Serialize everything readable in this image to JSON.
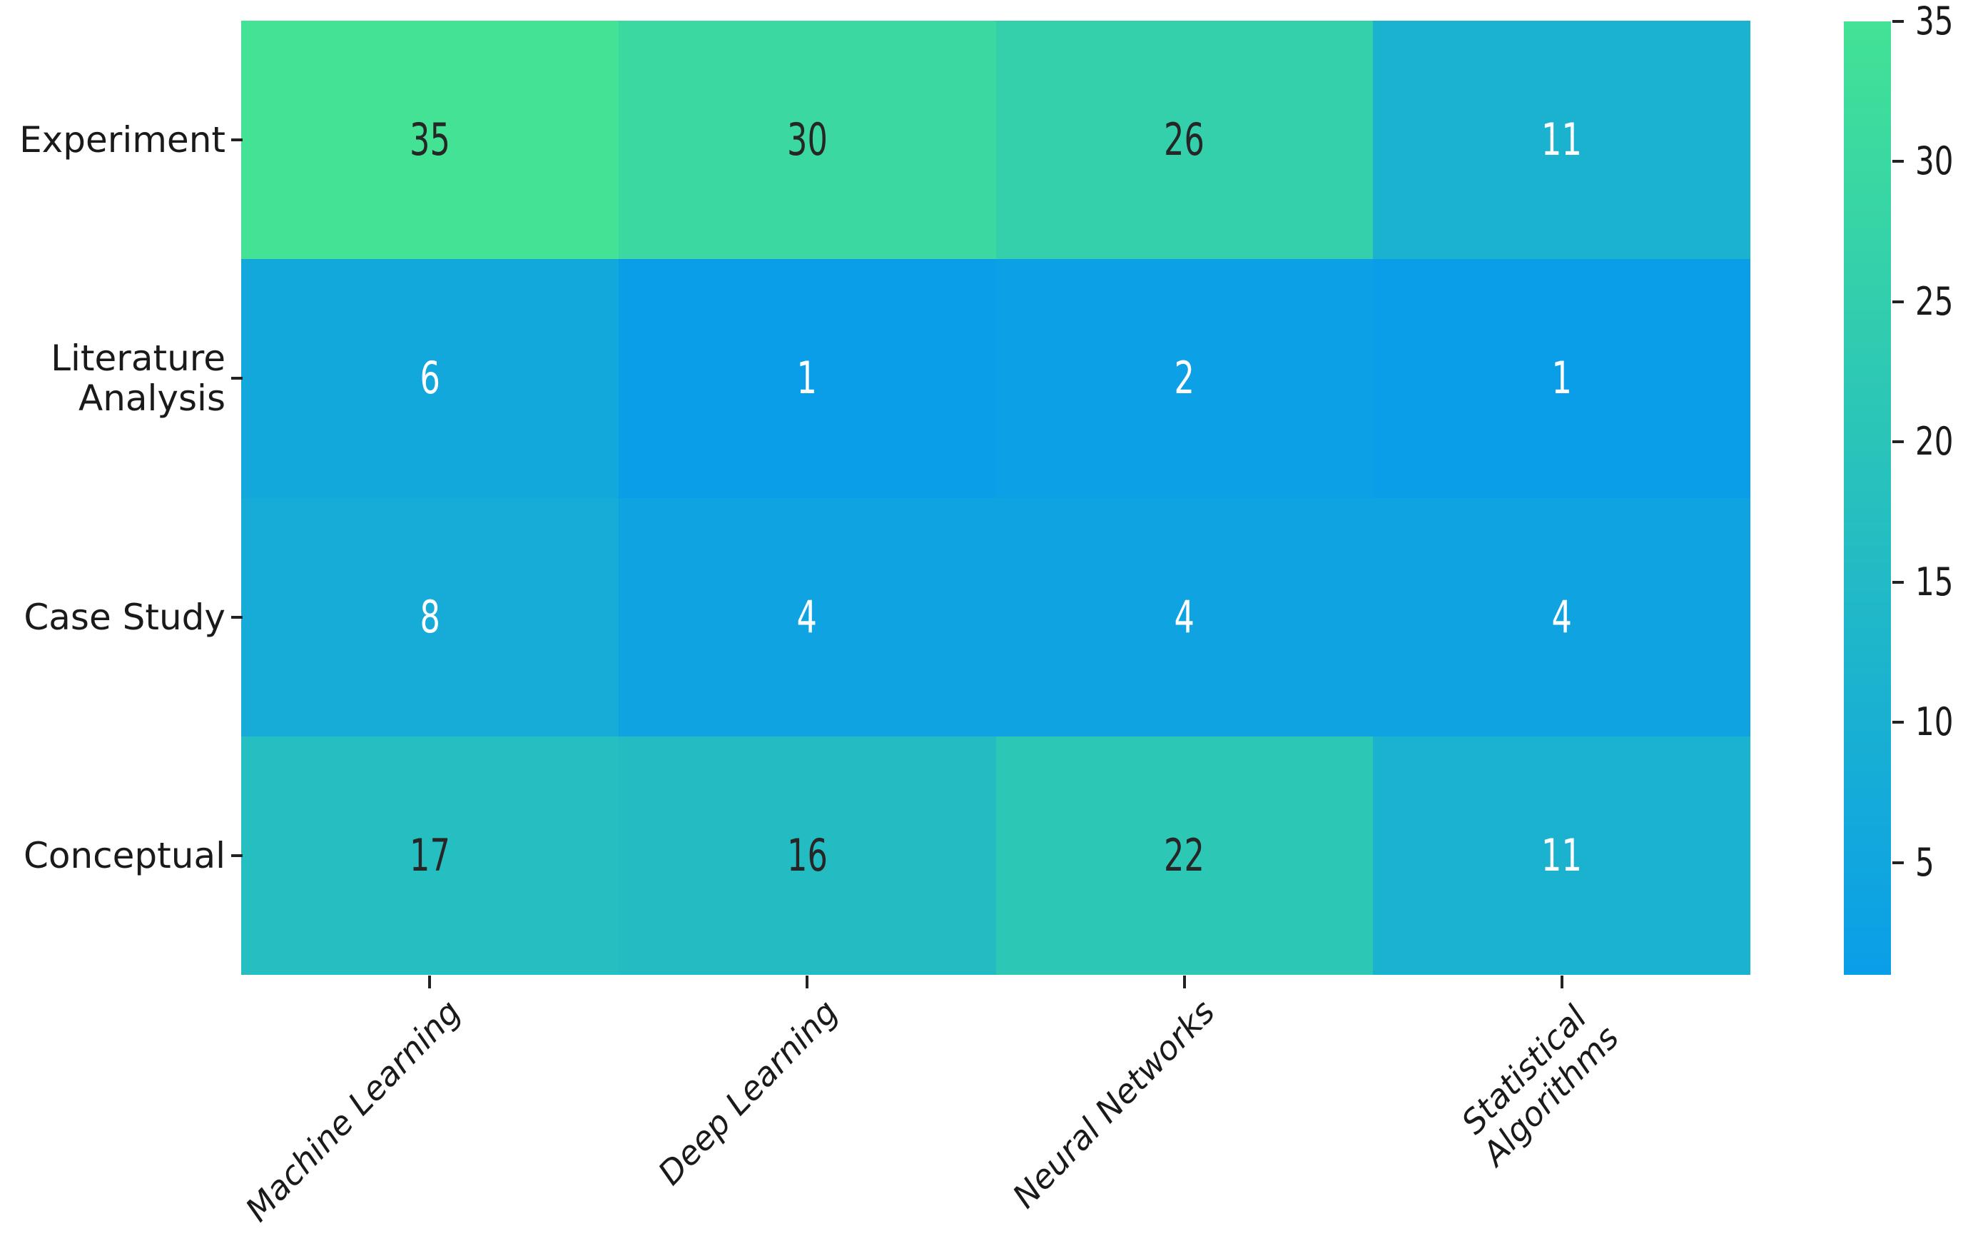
{
  "chart_data": {
    "type": "heatmap",
    "rows": [
      "Experiment",
      "Literature\nAnalysis",
      "Case Study",
      "Conceptual"
    ],
    "columns": [
      "Machine Learning",
      "Deep Learning",
      "Neural Networks",
      "Statistical\nAlgorithms"
    ],
    "values": [
      [
        35,
        30,
        26,
        11
      ],
      [
        6,
        1,
        2,
        1
      ],
      [
        8,
        4,
        4,
        4
      ],
      [
        17,
        16,
        22,
        11
      ]
    ],
    "colorbar": {
      "min": 1,
      "max": 35,
      "ticks": [
        5,
        10,
        15,
        20,
        25,
        30,
        35
      ],
      "color_min": "#0a9ee8",
      "color_max": "#43e295"
    },
    "annotation_color_dark": "#262626",
    "annotation_color_light": "#ffffff",
    "axis_text_color": "#1a1a1a",
    "legend_position": "right",
    "grid": false,
    "title": "",
    "xlabel": "",
    "ylabel": ""
  }
}
